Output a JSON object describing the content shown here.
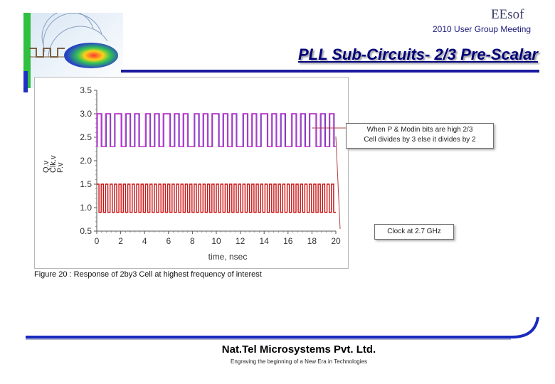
{
  "header": {
    "brand": "EEsof",
    "event": "2010 User Group Meeting",
    "title": "PLL Sub-Circuits- 2/3 Pre-Scalar"
  },
  "chart_data": {
    "type": "line",
    "x": [
      0,
      2,
      4,
      6,
      8,
      10,
      12,
      14,
      16,
      18,
      20
    ],
    "xlabel": "time, nsec",
    "xlim": [
      0,
      20
    ],
    "ylim": [
      0.5,
      3.5
    ],
    "yticks": [
      "0.5",
      "1.0",
      "1.5",
      "2.0",
      "2.5",
      "3.0",
      "3.5"
    ],
    "xticks": [
      "0",
      "2",
      "4",
      "6",
      "8",
      "10",
      "12",
      "14",
      "16",
      "18",
      "20"
    ],
    "series": [
      {
        "name": "P.v",
        "color": "#5050c0",
        "low": 2.3,
        "high": 3.0
      },
      {
        "name": "Clk.v",
        "color": "#cc1111",
        "freq_ghz": 2.7,
        "low": 0.9,
        "high": 1.5
      },
      {
        "name": "Q.v",
        "color": "#cc33cc",
        "low": 2.3,
        "high": 3.0
      }
    ],
    "annotations": [
      "When P & Modin bits are high 2/3 Cell divides by 3 else it divides by 2",
      "Clock at 2.7 GHz"
    ]
  },
  "callouts": {
    "divide_line1": "When P & Modin bits are high 2/3",
    "divide_line2": "Cell divides by 3 else it divides by 2",
    "clock": "Clock at 2.7 GHz"
  },
  "caption": "Figure 20 : Response of 2by3 Cell at highest frequency of interest",
  "footer": {
    "company": "Nat.Tel Microsystems Pvt. Ltd.",
    "tagline": "Engraving the beginning of a New Era in Technologies"
  }
}
